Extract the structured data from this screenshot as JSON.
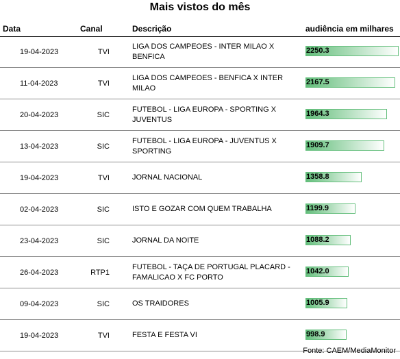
{
  "title": "Mais vistos do mês",
  "headers": {
    "data": "Data",
    "canal": "Canal",
    "descricao": "Descrição",
    "audiencia": "audiência em milhares"
  },
  "bar_color": "#63be7b",
  "rows": [
    {
      "date": "19-04-2023",
      "canal": "TVI",
      "desc": "LIGA DOS CAMPEOES - INTER MILAO X BENFICA",
      "value": 2250.3,
      "value_label": "2250.3"
    },
    {
      "date": "11-04-2023",
      "canal": "TVI",
      "desc": "LIGA DOS CAMPEOES - BENFICA X INTER MILAO",
      "value": 2167.5,
      "value_label": "2167.5"
    },
    {
      "date": "20-04-2023",
      "canal": "SIC",
      "desc": "FUTEBOL - LIGA EUROPA - SPORTING X JUVENTUS",
      "value": 1964.3,
      "value_label": "1964.3"
    },
    {
      "date": "13-04-2023",
      "canal": "SIC",
      "desc": "FUTEBOL - LIGA EUROPA - JUVENTUS X SPORTING",
      "value": 1909.7,
      "value_label": "1909.7"
    },
    {
      "date": "19-04-2023",
      "canal": "TVI",
      "desc": "JORNAL NACIONAL",
      "value": 1358.8,
      "value_label": "1358.8"
    },
    {
      "date": "02-04-2023",
      "canal": "SIC",
      "desc": "ISTO E GOZAR COM QUEM TRABALHA",
      "value": 1199.9,
      "value_label": "1199.9"
    },
    {
      "date": "23-04-2023",
      "canal": "SIC",
      "desc": "JORNAL DA NOITE",
      "value": 1088.2,
      "value_label": "1088.2"
    },
    {
      "date": "26-04-2023",
      "canal": "RTP1",
      "desc": "FUTEBOL - TAÇA DE PORTUGAL PLACARD - FAMALICAO X FC PORTO",
      "value": 1042.0,
      "value_label": "1042.0"
    },
    {
      "date": "09-04-2023",
      "canal": "SIC",
      "desc": "OS TRAIDORES",
      "value": 1005.9,
      "value_label": "1005.9"
    },
    {
      "date": "19-04-2023",
      "canal": "TVI",
      "desc": "FESTA E FESTA VI",
      "value": 998.9,
      "value_label": "998.9"
    }
  ],
  "source": "Fonte: CAEM/MediaMonitor"
}
